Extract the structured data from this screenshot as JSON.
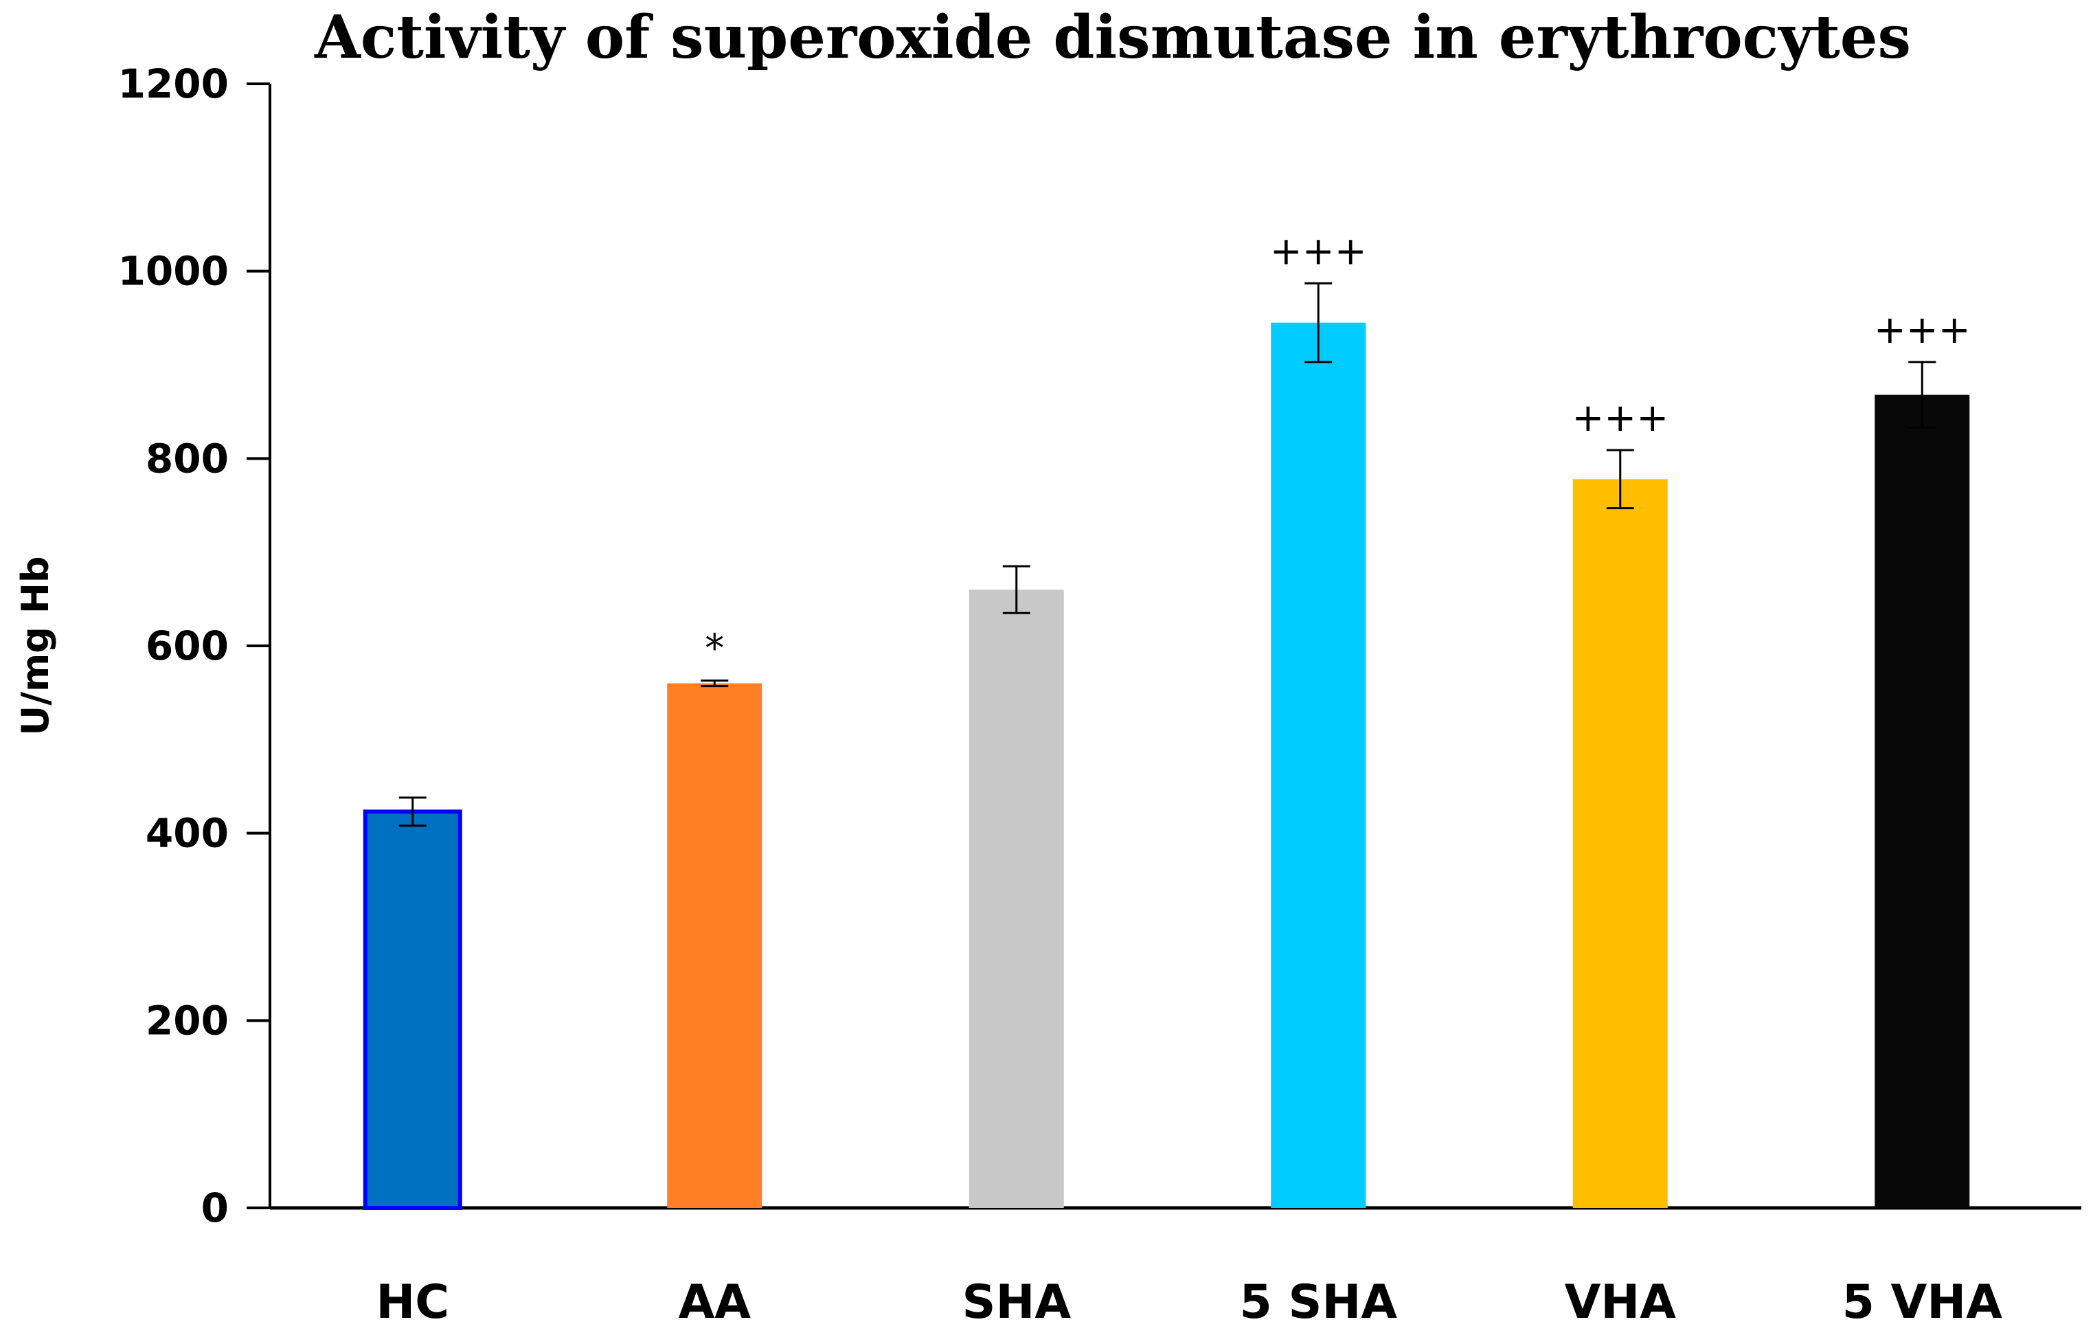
{
  "chart_data": {
    "type": "bar",
    "title": "Activity of superoxide dismutase in erythrocytes",
    "xlabel": "",
    "ylabel": "U/mg Hb",
    "ylim": [
      0,
      1200
    ],
    "yticks": [
      0,
      200,
      400,
      600,
      800,
      1000,
      1200
    ],
    "ytick_labels": [
      "0",
      "200",
      "400",
      "600",
      "800",
      "1000",
      "1200"
    ],
    "grid": false,
    "legend": "none",
    "categories": [
      "HC",
      "AA",
      "SHA",
      "5 SHA",
      "VHA",
      "5 VHA"
    ],
    "values": [
      423,
      560,
      660,
      945,
      778,
      868
    ],
    "errors": [
      15,
      3,
      25,
      42,
      31,
      35
    ],
    "annotations": [
      "",
      "*",
      "",
      "+++",
      "+++",
      "+++"
    ],
    "colors": [
      "#0070C0",
      "#FF7F27",
      "#C8C8C8",
      "#00CCFF",
      "#FFBF00",
      "#080808"
    ],
    "edge_colors": [
      "#0000FF",
      "none",
      "none",
      "none",
      "none",
      "none"
    ]
  }
}
